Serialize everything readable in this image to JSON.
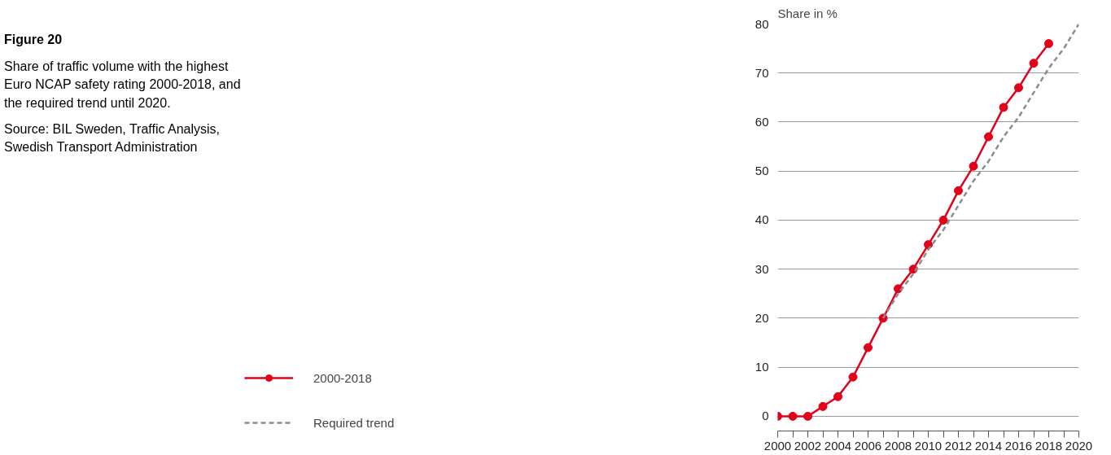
{
  "chart_data": {
    "type": "line",
    "title": "Figure 20",
    "subtitle": "Share of traffic volume with the highest Euro NCAP safety rating 2000-2018, and the required trend until 2020.",
    "annotations": [
      "Source: BIL Sweden, Traffic Analysis, Swedish Transport Administration"
    ],
    "ylabel": "Share in %",
    "series": [
      {
        "name": "2000-2018",
        "color": "#e2001a",
        "marker": "circle",
        "line_style": "solid",
        "x": [
          2000,
          2001,
          2002,
          2003,
          2004,
          2005,
          2006,
          2007,
          2008,
          2009,
          2010,
          2011,
          2012,
          2013,
          2014,
          2015,
          2016,
          2017,
          2018
        ],
        "values": [
          0,
          0,
          0,
          2,
          4,
          8,
          14,
          20,
          26,
          30,
          35,
          40,
          46,
          51,
          57,
          63,
          67,
          72,
          76
        ]
      },
      {
        "name": "Required trend",
        "color": "#8c8c8c",
        "marker": "none",
        "line_style": "dashed",
        "x": [
          2007,
          2008,
          2009,
          2010,
          2011,
          2012,
          2013,
          2014,
          2015,
          2016,
          2017,
          2018,
          2019,
          2020
        ],
        "values": [
          20,
          25,
          29,
          34,
          38,
          43,
          48,
          52,
          57,
          61,
          66,
          71,
          75,
          80
        ]
      }
    ],
    "xlim": [
      2000,
      2020
    ],
    "ylim": [
      -3,
      80
    ],
    "xticks": [
      2000,
      {
        "value": 2001,
        "label": null
      },
      2002,
      {
        "value": 2003,
        "label": null
      },
      2004,
      {
        "value": 2005,
        "label": null
      },
      2006,
      {
        "value": 2007,
        "label": null
      },
      2008,
      {
        "value": 2009,
        "label": null
      },
      2010,
      {
        "value": 2011,
        "label": null
      },
      2012,
      {
        "value": 2013,
        "label": null
      },
      2014,
      {
        "value": 2015,
        "label": null
      },
      2016,
      {
        "value": 2017,
        "label": null
      },
      2018,
      {
        "value": 2019,
        "label": null
      },
      2020
    ],
    "yticks": [
      0,
      10,
      20,
      30,
      40,
      50,
      60,
      70,
      80
    ],
    "grid": "y",
    "legend": "bottom left"
  }
}
